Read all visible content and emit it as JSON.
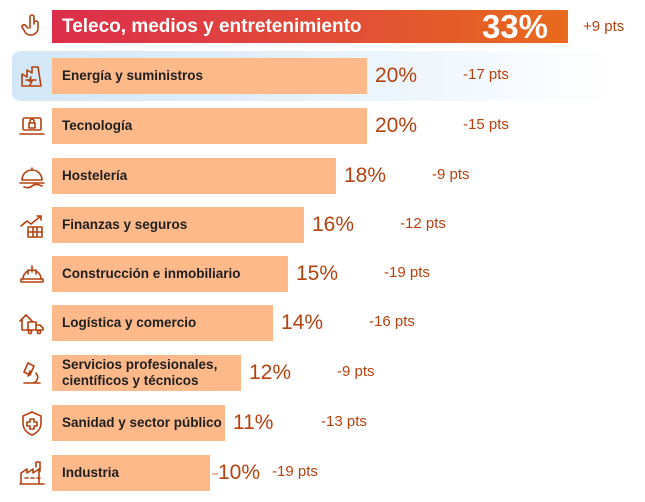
{
  "chart_data": {
    "type": "bar",
    "orientation": "horizontal",
    "title": "",
    "categories": [
      "Teleco, medios y entretenimiento",
      "Energía y suministros",
      "Tecnología",
      "Hostelería",
      "Finanzas y seguros",
      "Construcción e inmobiliario",
      "Logística y comercio",
      "Servicios profesionales,\ncientíficos y técnicos",
      "Sanidad y sector público",
      "Industria"
    ],
    "values": [
      33,
      20,
      20,
      18,
      16,
      15,
      14,
      12,
      11,
      10
    ],
    "value_labels": [
      "33%",
      "20%",
      "20%",
      "18%",
      "16%",
      "15%",
      "14%",
      "12%",
      "11%",
      "10%"
    ],
    "change_labels": [
      "+9 pts",
      "-17 pts",
      "-15 pts",
      "-9 pts",
      "-12 pts",
      "-19 pts",
      "-16 pts",
      "-9 pts",
      "-13 pts",
      "-19 pts"
    ],
    "icons": [
      "hand-pointer-icon",
      "energy-factory-icon",
      "laptop-lock-icon",
      "service-cloche-icon",
      "finance-growth-icon",
      "hard-hat-icon",
      "delivery-truck-icon",
      "microscope-icon",
      "medical-shield-icon",
      "factory-icon"
    ],
    "highlighted_category": "Energía y suministros",
    "colors": {
      "bar": "#fdb98a",
      "top_bar_start": "#dc2e4b",
      "top_bar_end": "#e86a1c",
      "value_text": "#b5410f",
      "highlight": "#d3e7f7",
      "icon_stroke": "#b5410f"
    },
    "grid": false,
    "legend": "none"
  }
}
